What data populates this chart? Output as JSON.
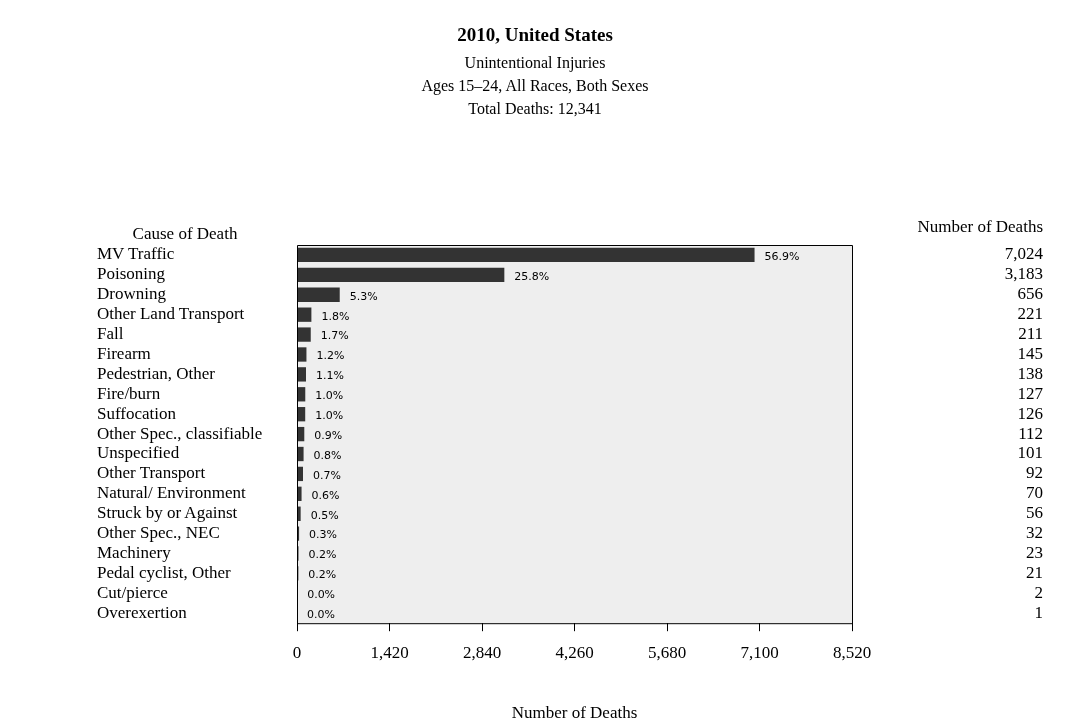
{
  "chart_data": {
    "type": "bar",
    "orientation": "horizontal",
    "title": "2010, United States",
    "subtitle": "Unintentional Injuries\nAges 15–24, All Races, Both Sexes\nTotal Deaths: 12,341",
    "xlabel": "Number of Deaths",
    "ylabel": "Cause of Death",
    "annotations": [
      "Number of Deaths",
      {
        "text": "56.9%",
        "x": 7024,
        "y": "MV Traffic"
      },
      {
        "text": "25.8%",
        "x": 3183,
        "y": "Poisoning"
      },
      {
        "text": "5.3%",
        "x": 656,
        "y": "Drowning"
      },
      {
        "text": "1.8%",
        "x": 221,
        "y": "Other Land Transport"
      },
      {
        "text": "1.7%",
        "x": 211,
        "y": "Fall"
      },
      {
        "text": "1.2%",
        "x": 145,
        "y": "Firearm"
      },
      {
        "text": "1.1%",
        "x": 138,
        "y": "Pedestrian, Other"
      },
      {
        "text": "1.0%",
        "x": 127,
        "y": "Fire/burn"
      },
      {
        "text": "1.0%",
        "x": 126,
        "y": "Suffocation"
      },
      {
        "text": "0.9%",
        "x": 112,
        "y": "Other Spec., classifiable"
      },
      {
        "text": "0.8%",
        "x": 101,
        "y": "Unspecified"
      },
      {
        "text": "0.7%",
        "x": 92,
        "y": "Other Transport"
      },
      {
        "text": "0.6%",
        "x": 70,
        "y": "Natural/ Environment"
      },
      {
        "text": "0.5%",
        "x": 56,
        "y": "Struck by or Against"
      },
      {
        "text": "0.3%",
        "x": 32,
        "y": "Other Spec., NEC"
      },
      {
        "text": "0.2%",
        "x": 23,
        "y": "Machinery"
      },
      {
        "text": "0.2%",
        "x": 21,
        "y": "Pedal cyclist, Other"
      },
      {
        "text": "0.0%",
        "x": 2,
        "y": "Cut/pierce"
      },
      {
        "text": "0.0%",
        "x": 1,
        "y": "Overexertion"
      }
    ],
    "categories": [
      "MV Traffic",
      "Poisoning",
      "Drowning",
      "Other Land Transport",
      "Fall",
      "Firearm",
      "Pedestrian, Other",
      "Fire/burn",
      "Suffocation",
      "Other Spec., classifiable",
      "Unspecified",
      "Other Transport",
      "Natural/ Environment",
      "Struck by or Against",
      "Other Spec., NEC",
      "Machinery",
      "Pedal cyclist, Other",
      "Cut/pierce",
      "Overexertion"
    ],
    "values": [
      7024,
      3183,
      656,
      221,
      211,
      145,
      138,
      127,
      126,
      112,
      101,
      92,
      70,
      56,
      32,
      23,
      21,
      2,
      1
    ],
    "value_labels": [
      "7,024",
      "3,183",
      "656",
      "221",
      "211",
      "145",
      "138",
      "127",
      "126",
      "112",
      "101",
      "92",
      "70",
      "56",
      "32",
      "23",
      "21",
      "2",
      "1"
    ],
    "color": "#333333",
    "xlim": [
      0,
      8520
    ],
    "xticks": [
      0,
      {
        "value": 1420,
        "label": "1,420"
      },
      {
        "value": 2840,
        "label": "2,840"
      },
      {
        "value": 4260,
        "label": "4,260"
      },
      {
        "value": 5680,
        "label": "5,680"
      },
      {
        "value": 7100,
        "label": "7,100"
      },
      {
        "value": 8520,
        "label": "8,520"
      }
    ]
  }
}
